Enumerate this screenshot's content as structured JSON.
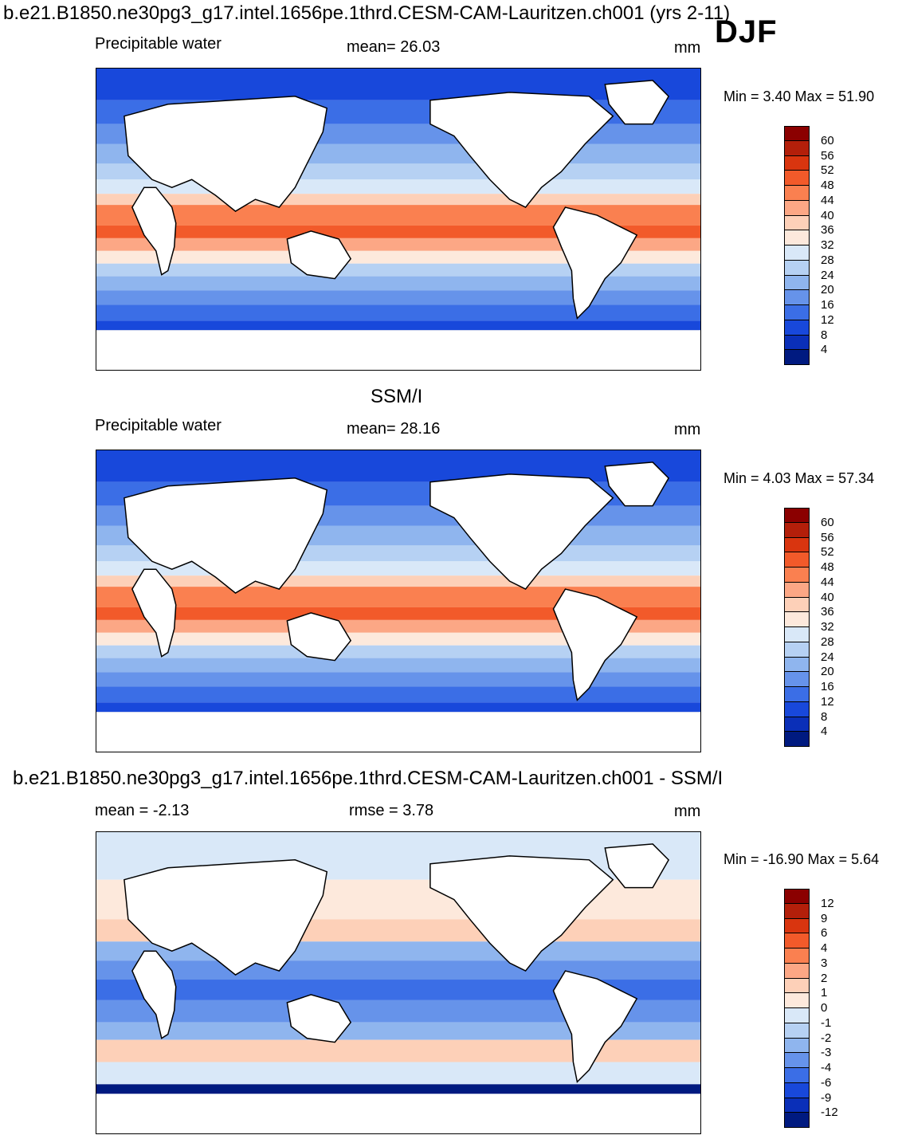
{
  "header": {
    "title": "b.e21.B1850.ne30pg3_g17.intel.1656pe.1thrd.CESM-CAM-Lauritzen.ch001 (yrs 2-11)",
    "season": "DJF"
  },
  "panels": [
    {
      "title": "",
      "left_label": "Precipitable water",
      "center_label": "mean=  26.03",
      "right_label": "mm",
      "minmax": "Min =   3.40 Max =  51.90",
      "colorbar": {
        "labels": [
          "60",
          "56",
          "52",
          "48",
          "44",
          "40",
          "36",
          "32",
          "28",
          "24",
          "20",
          "16",
          "12",
          "8",
          "4"
        ],
        "colors": [
          "#8b0000",
          "#b31f0a",
          "#d9350f",
          "#f25a2a",
          "#fa8050",
          "#fca785",
          "#fdd0b8",
          "#fde9dc",
          "#d9e8f8",
          "#b6d1f3",
          "#8fb5ee",
          "#6693ea",
          "#3b6ee6",
          "#1848db",
          "#0a2fb8",
          "#001a80"
        ]
      }
    },
    {
      "title": "SSM/I",
      "left_label": "Precipitable water",
      "center_label": "mean=  28.16",
      "right_label": "mm",
      "minmax": "Min =   4.03 Max =  57.34",
      "colorbar": {
        "labels": [
          "60",
          "56",
          "52",
          "48",
          "44",
          "40",
          "36",
          "32",
          "28",
          "24",
          "20",
          "16",
          "12",
          "8",
          "4"
        ],
        "colors": [
          "#8b0000",
          "#b31f0a",
          "#d9350f",
          "#f25a2a",
          "#fa8050",
          "#fca785",
          "#fdd0b8",
          "#fde9dc",
          "#d9e8f8",
          "#b6d1f3",
          "#8fb5ee",
          "#6693ea",
          "#3b6ee6",
          "#1848db",
          "#0a2fb8",
          "#001a80"
        ]
      }
    },
    {
      "title": "b.e21.B1850.ne30pg3_g17.intel.1656pe.1thrd.CESM-CAM-Lauritzen.ch001 - SSM/I",
      "left_label": "mean =  -2.13",
      "center_label": "rmse =    3.78",
      "right_label": "mm",
      "minmax": "Min = -16.90 Max =    5.64",
      "colorbar": {
        "labels": [
          "12",
          "9",
          "6",
          "4",
          "3",
          "2",
          "1",
          "0",
          "-1",
          "-2",
          "-3",
          "-4",
          "-6",
          "-9",
          "-12"
        ],
        "colors": [
          "#8b0000",
          "#b31f0a",
          "#d9350f",
          "#f25a2a",
          "#fa8050",
          "#fca785",
          "#fdd0b8",
          "#fde9dc",
          "#d9e8f8",
          "#b6d1f3",
          "#8fb5ee",
          "#6693ea",
          "#3b6ee6",
          "#1848db",
          "#0a2fb8",
          "#001a80"
        ]
      }
    }
  ]
}
